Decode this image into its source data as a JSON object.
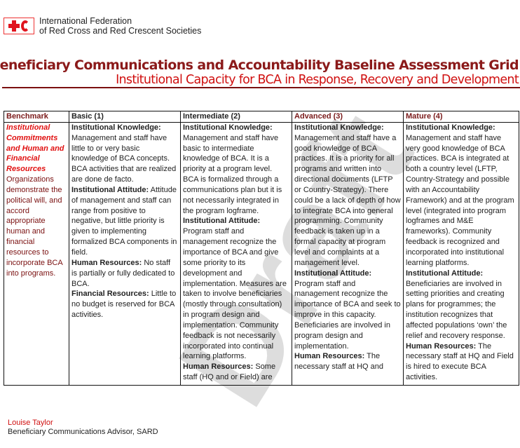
{
  "org": {
    "line1": "International Federation",
    "line2": "of Red Cross and Red Crescent Societies"
  },
  "title": "Beneficiary Communications and Accountability Baseline Assessment Grid",
  "subtitle": "Institutional Capacity for BCA in Response, Recovery and Development",
  "watermark": "Draft",
  "table": {
    "headers": [
      "Benchmark",
      "Basic (1)",
      "Intermediate (2)",
      "Advanced (3)",
      "Mature (4)"
    ],
    "benchmark": {
      "heading": "Institutional Commitments and Human and Financial Resources",
      "text": "Organizations demonstrate the political will, and accord appropriate human and financial resources to incorporate BCA into programs."
    },
    "basic": [
      {
        "label": "Institutional Knowledge:",
        "text": "Management and staff have little to or very basic knowledge of BCA concepts. BCA activities that are realized are done de facto."
      },
      {
        "label": "Institutional Attitude:",
        "text": "Attitude of management and staff can range from positive to negative, but little priority is given to implementing formalized BCA components in field."
      },
      {
        "label": "Human Resources:",
        "text": "No staff is partially or fully dedicated to BCA."
      },
      {
        "label": "Financial Resources:",
        "text": "Little to no budget is reserved for BCA activities."
      }
    ],
    "intermediate": [
      {
        "label": "Institutional Knowledge:",
        "text": "Management and staff have basic to intermediate knowledge of BCA. It is a priority at a program level. BCA is formalized through a communications plan but it is not necessarily integrated in the program logframe."
      },
      {
        "label": "Institutional Attitude:",
        "text": "Program staff and management recognize the importance of BCA and give some priority to its development and implementation. Measures are taken to involve beneficiaries (mostly through consultation) in program design and implementation. Community feedback is not necessarily incorporated into continual learning platforms."
      },
      {
        "label": "Human Resources:",
        "text": "Some staff (HQ and or Field) are"
      }
    ],
    "advanced": [
      {
        "label": "Institutional Knowledge:",
        "text": "Management and staff have a good knowledge of BCA practices. It is a priority for all programs and written into directional documents (LFTP or Country-Strategy). There could be a lack of depth of how to integrate BCA into general programming. Community feedback is taken up in a formal capacity at program level and complaints at a management level."
      },
      {
        "label": "Institutional Attitude:",
        "text": "Program staff and management recognize the importance of BCA and seek to improve in this capacity. Beneficiaries are involved in program design and implementation."
      },
      {
        "label": "Human Resources:",
        "text": "The necessary staff at HQ and"
      }
    ],
    "mature": [
      {
        "label": "Institutional Knowledge:",
        "text": "Management and staff have very good knowledge of BCA practices. BCA is integrated at both a country level (LFTP, Country-Strategy and possible with an Accountability Framework) and at the program level (integrated into program logframes and M&E frameworks). Community feedback is recognized and incorporated into institutional learning platforms."
      },
      {
        "label": "Institutional Attitude:",
        "text": "Beneficiaries are involved in setting priorities and creating plans for programmes; the institution recognizes that affected populations ‘own’ the relief and recovery response."
      },
      {
        "label": "Human Resources:",
        "text": "The necessary staff at HQ and Field is hired to execute BCA activities."
      }
    ]
  },
  "footer": {
    "name": "Louise Taylor",
    "role": "Beneficiary Communications Advisor, SARD"
  },
  "colors": {
    "title": "#8b1a1a",
    "subtitle": "#d01010",
    "logo": "#e0141e"
  }
}
